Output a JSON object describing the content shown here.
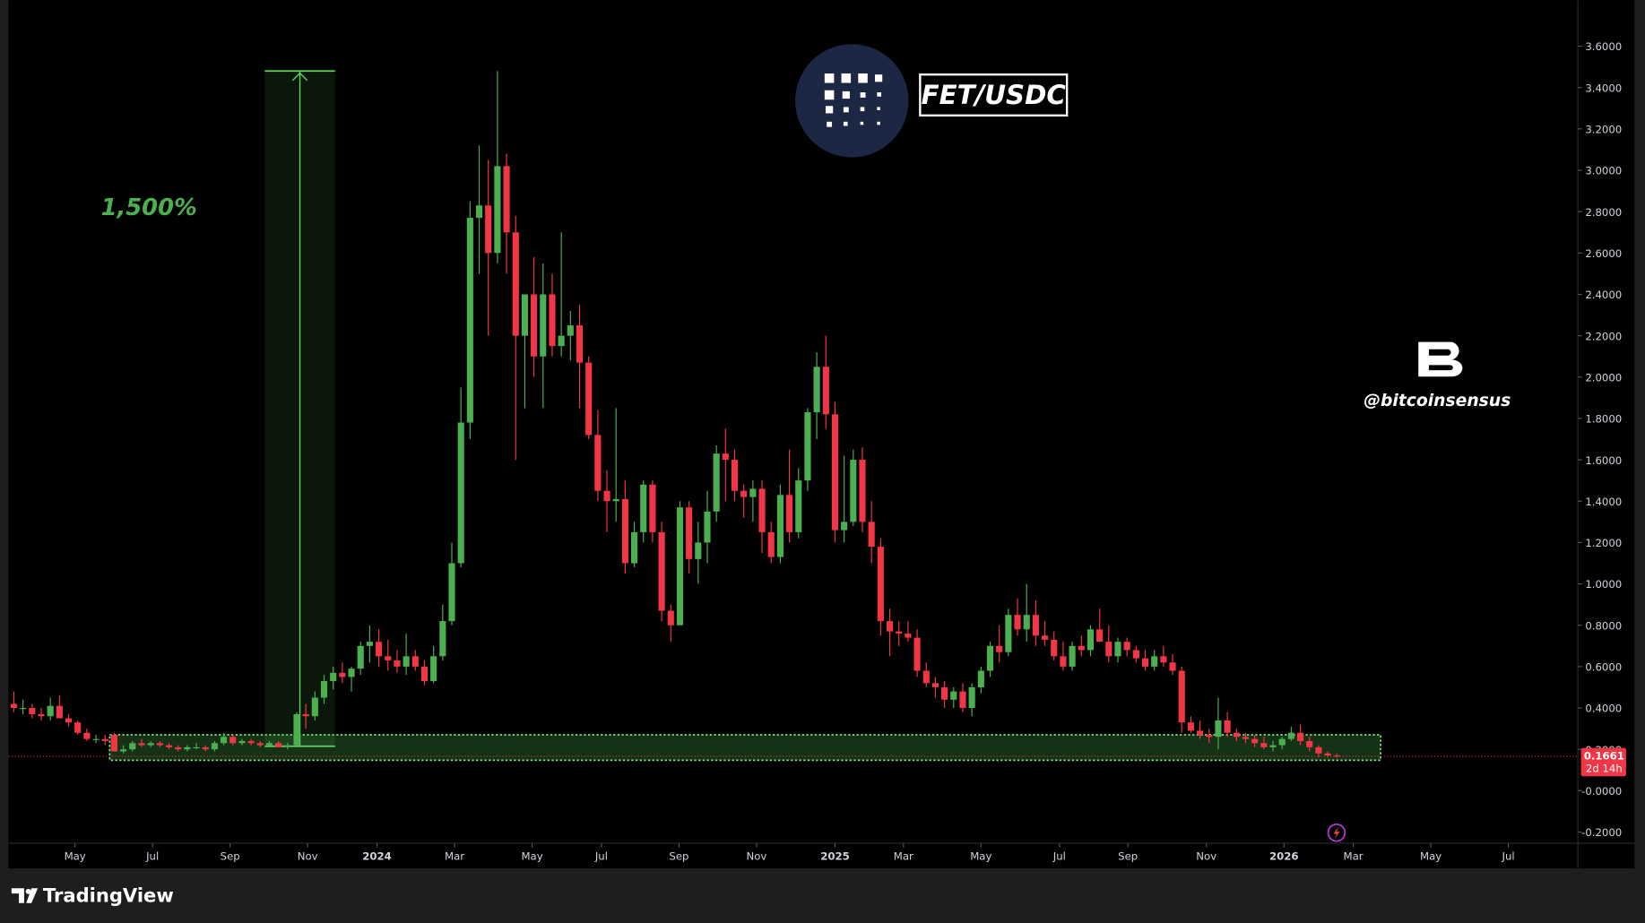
{
  "chart_data": {
    "type": "candlestick",
    "title": "FET/USDC",
    "watermark": "@bitcoinsensus",
    "brand": "TradingView",
    "up_color": "#4caf50",
    "down_color": "#f23645",
    "candles": [
      [
        0.42,
        0.48,
        0.38,
        0.4
      ],
      [
        0.4,
        0.44,
        0.37,
        0.4
      ],
      [
        0.4,
        0.42,
        0.35,
        0.37
      ],
      [
        0.37,
        0.4,
        0.34,
        0.36
      ],
      [
        0.36,
        0.45,
        0.34,
        0.41
      ],
      [
        0.41,
        0.46,
        0.35,
        0.35
      ],
      [
        0.35,
        0.37,
        0.31,
        0.33
      ],
      [
        0.33,
        0.34,
        0.27,
        0.28
      ],
      [
        0.28,
        0.3,
        0.24,
        0.25
      ],
      [
        0.25,
        0.27,
        0.23,
        0.25
      ],
      [
        0.25,
        0.27,
        0.22,
        0.24
      ],
      [
        0.27,
        0.28,
        0.19,
        0.19
      ],
      [
        0.19,
        0.22,
        0.18,
        0.2
      ],
      [
        0.2,
        0.24,
        0.19,
        0.23
      ],
      [
        0.23,
        0.25,
        0.21,
        0.22
      ],
      [
        0.22,
        0.24,
        0.21,
        0.23
      ],
      [
        0.23,
        0.24,
        0.21,
        0.22
      ],
      [
        0.22,
        0.23,
        0.2,
        0.21
      ],
      [
        0.21,
        0.22,
        0.19,
        0.2
      ],
      [
        0.2,
        0.22,
        0.19,
        0.21
      ],
      [
        0.21,
        0.23,
        0.2,
        0.21
      ],
      [
        0.21,
        0.22,
        0.19,
        0.2
      ],
      [
        0.2,
        0.24,
        0.19,
        0.23
      ],
      [
        0.23,
        0.28,
        0.22,
        0.26
      ],
      [
        0.26,
        0.27,
        0.22,
        0.23
      ],
      [
        0.23,
        0.25,
        0.22,
        0.24
      ],
      [
        0.24,
        0.25,
        0.22,
        0.23
      ],
      [
        0.23,
        0.24,
        0.21,
        0.22
      ],
      [
        0.22,
        0.24,
        0.21,
        0.23
      ],
      [
        0.23,
        0.24,
        0.21,
        0.21
      ],
      [
        0.21,
        0.23,
        0.2,
        0.22
      ],
      [
        0.22,
        0.38,
        0.21,
        0.37
      ],
      [
        0.37,
        0.42,
        0.3,
        0.36
      ],
      [
        0.36,
        0.48,
        0.34,
        0.45
      ],
      [
        0.45,
        0.56,
        0.42,
        0.53
      ],
      [
        0.53,
        0.6,
        0.49,
        0.57
      ],
      [
        0.57,
        0.62,
        0.52,
        0.55
      ],
      [
        0.55,
        0.6,
        0.48,
        0.59
      ],
      [
        0.59,
        0.72,
        0.56,
        0.7
      ],
      [
        0.7,
        0.8,
        0.62,
        0.72
      ],
      [
        0.72,
        0.78,
        0.6,
        0.65
      ],
      [
        0.65,
        0.73,
        0.58,
        0.63
      ],
      [
        0.63,
        0.68,
        0.57,
        0.6
      ],
      [
        0.6,
        0.76,
        0.56,
        0.65
      ],
      [
        0.65,
        0.68,
        0.58,
        0.6
      ],
      [
        0.6,
        0.63,
        0.51,
        0.53
      ],
      [
        0.53,
        0.7,
        0.52,
        0.65
      ],
      [
        0.65,
        0.9,
        0.63,
        0.82
      ],
      [
        0.82,
        1.2,
        0.8,
        1.1
      ],
      [
        1.1,
        1.95,
        1.08,
        1.78
      ],
      [
        1.78,
        2.85,
        1.7,
        2.77
      ],
      [
        2.77,
        3.12,
        2.5,
        2.83
      ],
      [
        2.83,
        3.05,
        2.2,
        2.6
      ],
      [
        2.6,
        3.48,
        2.55,
        3.02
      ],
      [
        3.02,
        3.08,
        2.5,
        2.7
      ],
      [
        2.7,
        2.78,
        1.6,
        2.2
      ],
      [
        2.2,
        2.4,
        1.85,
        2.4
      ],
      [
        2.4,
        2.58,
        2.0,
        2.1
      ],
      [
        2.1,
        2.55,
        1.85,
        2.4
      ],
      [
        2.4,
        2.5,
        2.1,
        2.15
      ],
      [
        2.15,
        2.7,
        2.1,
        2.2
      ],
      [
        2.2,
        2.32,
        2.08,
        2.25
      ],
      [
        2.25,
        2.35,
        1.85,
        2.07
      ],
      [
        2.07,
        2.1,
        1.7,
        1.72
      ],
      [
        1.72,
        1.84,
        1.4,
        1.45
      ],
      [
        1.45,
        1.55,
        1.25,
        1.4
      ],
      [
        1.4,
        1.85,
        1.3,
        1.41
      ],
      [
        1.41,
        1.5,
        1.05,
        1.1
      ],
      [
        1.1,
        1.3,
        1.08,
        1.25
      ],
      [
        1.25,
        1.5,
        1.2,
        1.48
      ],
      [
        1.48,
        1.5,
        1.2,
        1.25
      ],
      [
        1.25,
        1.3,
        0.82,
        0.87
      ],
      [
        0.87,
        0.9,
        0.72,
        0.8
      ],
      [
        0.8,
        1.4,
        0.8,
        1.37
      ],
      [
        1.37,
        1.4,
        1.05,
        1.12
      ],
      [
        1.12,
        1.3,
        1.0,
        1.2
      ],
      [
        1.2,
        1.45,
        1.1,
        1.35
      ],
      [
        1.35,
        1.67,
        1.3,
        1.63
      ],
      [
        1.63,
        1.75,
        1.4,
        1.6
      ],
      [
        1.6,
        1.65,
        1.4,
        1.45
      ],
      [
        1.45,
        1.48,
        1.32,
        1.42
      ],
      [
        1.42,
        1.5,
        1.3,
        1.46
      ],
      [
        1.46,
        1.5,
        1.15,
        1.25
      ],
      [
        1.25,
        1.3,
        1.1,
        1.13
      ],
      [
        1.13,
        1.48,
        1.1,
        1.43
      ],
      [
        1.43,
        1.65,
        1.2,
        1.25
      ],
      [
        1.25,
        1.56,
        1.22,
        1.5
      ],
      [
        1.5,
        1.85,
        1.45,
        1.83
      ],
      [
        1.83,
        2.12,
        1.7,
        2.05
      ],
      [
        2.05,
        2.2,
        1.75,
        1.82
      ],
      [
        1.82,
        1.88,
        1.2,
        1.26
      ],
      [
        1.26,
        1.62,
        1.2,
        1.3
      ],
      [
        1.3,
        1.65,
        1.28,
        1.6
      ],
      [
        1.6,
        1.66,
        1.25,
        1.3
      ],
      [
        1.3,
        1.4,
        1.1,
        1.18
      ],
      [
        1.18,
        1.22,
        0.75,
        0.82
      ],
      [
        0.82,
        0.88,
        0.65,
        0.77
      ],
      [
        0.77,
        0.82,
        0.7,
        0.76
      ],
      [
        0.76,
        0.82,
        0.72,
        0.74
      ],
      [
        0.74,
        0.78,
        0.55,
        0.58
      ],
      [
        0.58,
        0.62,
        0.5,
        0.52
      ],
      [
        0.52,
        0.55,
        0.45,
        0.5
      ],
      [
        0.5,
        0.53,
        0.4,
        0.44
      ],
      [
        0.44,
        0.5,
        0.4,
        0.48
      ],
      [
        0.48,
        0.52,
        0.38,
        0.4
      ],
      [
        0.4,
        0.52,
        0.36,
        0.5
      ],
      [
        0.5,
        0.6,
        0.47,
        0.58
      ],
      [
        0.58,
        0.72,
        0.55,
        0.7
      ],
      [
        0.7,
        0.8,
        0.62,
        0.67
      ],
      [
        0.67,
        0.88,
        0.65,
        0.85
      ],
      [
        0.85,
        0.93,
        0.75,
        0.78
      ],
      [
        0.78,
        1.0,
        0.72,
        0.85
      ],
      [
        0.85,
        0.92,
        0.7,
        0.75
      ],
      [
        0.75,
        0.82,
        0.7,
        0.73
      ],
      [
        0.73,
        0.77,
        0.63,
        0.65
      ],
      [
        0.65,
        0.72,
        0.58,
        0.6
      ],
      [
        0.6,
        0.72,
        0.58,
        0.7
      ],
      [
        0.7,
        0.75,
        0.65,
        0.68
      ],
      [
        0.68,
        0.8,
        0.65,
        0.78
      ],
      [
        0.78,
        0.88,
        0.72,
        0.72
      ],
      [
        0.72,
        0.8,
        0.62,
        0.65
      ],
      [
        0.65,
        0.74,
        0.62,
        0.72
      ],
      [
        0.72,
        0.74,
        0.65,
        0.68
      ],
      [
        0.68,
        0.7,
        0.62,
        0.64
      ],
      [
        0.64,
        0.68,
        0.58,
        0.6
      ],
      [
        0.6,
        0.68,
        0.58,
        0.65
      ],
      [
        0.65,
        0.7,
        0.6,
        0.62
      ],
      [
        0.62,
        0.66,
        0.56,
        0.58
      ],
      [
        0.58,
        0.6,
        0.28,
        0.33
      ],
      [
        0.33,
        0.36,
        0.28,
        0.29
      ],
      [
        0.29,
        0.34,
        0.25,
        0.27
      ],
      [
        0.27,
        0.3,
        0.23,
        0.26
      ],
      [
        0.26,
        0.45,
        0.2,
        0.34
      ],
      [
        0.34,
        0.38,
        0.26,
        0.28
      ],
      [
        0.28,
        0.3,
        0.24,
        0.26
      ],
      [
        0.26,
        0.28,
        0.23,
        0.25
      ],
      [
        0.25,
        0.27,
        0.21,
        0.23
      ],
      [
        0.23,
        0.26,
        0.2,
        0.21
      ],
      [
        0.21,
        0.24,
        0.19,
        0.22
      ],
      [
        0.22,
        0.26,
        0.2,
        0.25
      ],
      [
        0.25,
        0.31,
        0.24,
        0.28
      ],
      [
        0.28,
        0.32,
        0.22,
        0.24
      ],
      [
        0.24,
        0.26,
        0.19,
        0.21
      ],
      [
        0.21,
        0.22,
        0.16,
        0.18
      ],
      [
        0.18,
        0.19,
        0.16,
        0.17
      ],
      [
        0.17,
        0.18,
        0.16,
        0.1661
      ]
    ],
    "xlim": [
      -0.6,
      171.3
    ],
    "xticks": [
      {
        "value": 6.7,
        "label": "May"
      },
      {
        "value": 15.2,
        "label": "Jul"
      },
      {
        "value": 23.7,
        "label": "Sep"
      },
      {
        "value": 32.2,
        "label": "Nov"
      },
      {
        "value": 39.8,
        "label": "2024"
      },
      {
        "value": 48.3,
        "label": "Mar"
      },
      {
        "value": 56.8,
        "label": "May"
      },
      {
        "value": 64.4,
        "label": "Jul"
      },
      {
        "value": 72.9,
        "label": "Sep"
      },
      {
        "value": 81.4,
        "label": "Nov"
      },
      {
        "value": 90.0,
        "label": "2025"
      },
      {
        "value": 97.5,
        "label": "Mar"
      },
      {
        "value": 106.0,
        "label": "May"
      },
      {
        "value": 114.6,
        "label": "Jul"
      },
      {
        "value": 122.1,
        "label": "Sep"
      },
      {
        "value": 130.7,
        "label": "Nov"
      },
      {
        "value": 139.2,
        "label": "2026"
      },
      {
        "value": 146.8,
        "label": "Mar"
      },
      {
        "value": 155.3,
        "label": "May"
      },
      {
        "value": 163.8,
        "label": "Jul"
      }
    ],
    "ylim": [
      -0.249,
      3.823
    ],
    "yticks": [
      {
        "value": 3.6,
        "label": "3.6000"
      },
      {
        "value": 3.4,
        "label": "3.4000"
      },
      {
        "value": 3.2,
        "label": "3.2000"
      },
      {
        "value": 3.0,
        "label": "3.0000"
      },
      {
        "value": 2.8,
        "label": "2.8000"
      },
      {
        "value": 2.6,
        "label": "2.6000"
      },
      {
        "value": 2.4,
        "label": "2.4000"
      },
      {
        "value": 2.2,
        "label": "2.2000"
      },
      {
        "value": 2.0,
        "label": "2.0000"
      },
      {
        "value": 1.8,
        "label": "1.8000"
      },
      {
        "value": 1.6,
        "label": "1.6000"
      },
      {
        "value": 1.4,
        "label": "1.4000"
      },
      {
        "value": 1.2,
        "label": "1.2000"
      },
      {
        "value": 1.0,
        "label": "1.0000"
      },
      {
        "value": 0.8,
        "label": "0.8000"
      },
      {
        "value": 0.6,
        "label": "0.6000"
      },
      {
        "value": 0.4,
        "label": "0.4000"
      },
      {
        "value": 0.2,
        "label": "0.2000"
      },
      {
        "value": 0,
        "label": "-0.0000"
      },
      {
        "value": -0.2,
        "label": "-0.2000"
      }
    ],
    "measure": {
      "start": 27.5,
      "end": 35.2,
      "from": 0.215,
      "to": 3.48,
      "label": "1,500%"
    },
    "zone": {
      "start": 10.5,
      "end": 149.8,
      "from": 0.147,
      "to": 0.27
    },
    "last_price": 0.1661,
    "countdown": "2d 14h"
  }
}
